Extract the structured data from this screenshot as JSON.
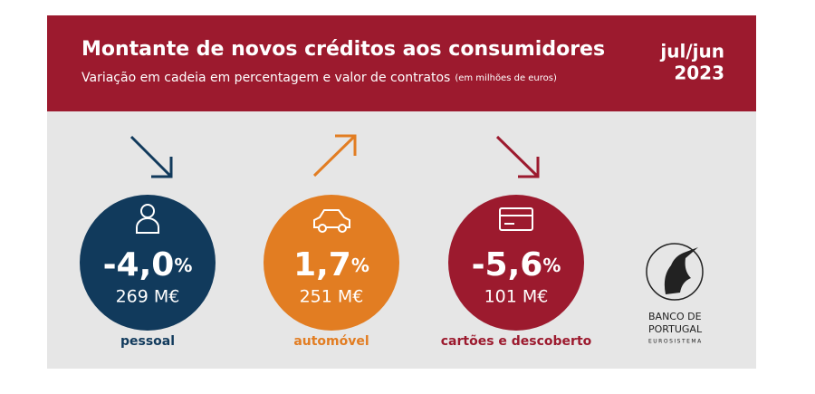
{
  "header": {
    "title": "Montante de novos créditos aos consumidores",
    "subtitle": "Variação em cadeia em percentagem e valor de contratos",
    "subtitle_note": "(em milhões de euros)",
    "period": [
      "jul/jun",
      "2023"
    ]
  },
  "items": [
    {
      "value": "-4,0",
      "unit": "%",
      "amount": "269 M€",
      "label": "pessoal",
      "color": "#113a5c"
    },
    {
      "value": "1,7",
      "unit": "%",
      "amount": "251 M€",
      "label": "automóvel",
      "color": "#e27d22"
    },
    {
      "value": "-5,6",
      "unit": "%",
      "amount": "101 M€",
      "label": "cartões e descoberto",
      "color": "#9c1a2e"
    }
  ],
  "logo": {
    "line1": "BANCO DE",
    "line2": "PORTUGAL",
    "line3": "EUROSISTEMA"
  }
}
